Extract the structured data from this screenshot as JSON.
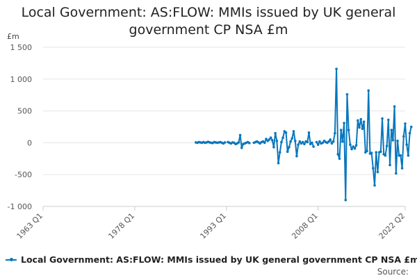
{
  "chart_data": {
    "type": "line",
    "title_lines": [
      "Local Government: AS:FLOW: MMIs issued by UK general",
      "government CP NSA £m"
    ],
    "ylabel": "£m",
    "ylim": [
      -1000,
      1500
    ],
    "y_ticks": [
      -1000,
      -500,
      0,
      500,
      1000,
      1500
    ],
    "y_tick_labels": [
      "-1 000",
      "-500",
      "0",
      "500",
      "1 000",
      "1 500"
    ],
    "x_tick_labels": [
      "1963 Q1",
      "1978 Q1",
      "1993 Q1",
      "2008 Q1",
      "2022 Q2"
    ],
    "x_tick_positions": [
      1963.0,
      1978.0,
      1993.0,
      2008.0,
      2022.25
    ],
    "xlim": [
      1963.0,
      2022.25
    ],
    "grid": "horizontal",
    "legend_position": "bottom",
    "series": [
      {
        "name": "Local Government: AS:FLOW: MMIs issued by UK general government CP NSA £m",
        "color": "#0877bd",
        "segments": [
          [
            [
              1988.0,
              5
            ],
            [
              1988.25,
              0
            ],
            [
              1988.5,
              10
            ],
            [
              1988.75,
              5
            ],
            [
              1989.0,
              0
            ],
            [
              1989.25,
              10
            ],
            [
              1989.5,
              0
            ],
            [
              1989.75,
              5
            ],
            [
              1990.0,
              15
            ],
            [
              1990.25,
              5
            ],
            [
              1990.5,
              0
            ],
            [
              1990.75,
              -5
            ],
            [
              1991.0,
              10
            ],
            [
              1991.25,
              5
            ],
            [
              1991.5,
              0
            ],
            [
              1991.75,
              5
            ],
            [
              1992.0,
              10
            ],
            [
              1992.25,
              0
            ],
            [
              1992.5,
              -10
            ],
            [
              1992.75,
              5
            ]
          ],
          [
            [
              1993.25,
              10
            ],
            [
              1993.5,
              0
            ],
            [
              1993.75,
              -10
            ],
            [
              1994.0,
              5
            ],
            [
              1994.25,
              0
            ],
            [
              1994.5,
              -20
            ],
            [
              1994.75,
              -10
            ],
            [
              1995.0,
              5
            ],
            [
              1995.25,
              120
            ],
            [
              1995.5,
              -80
            ],
            [
              1995.75,
              -20
            ],
            [
              1996.0,
              -10
            ],
            [
              1996.25,
              0
            ],
            [
              1996.5,
              10
            ],
            [
              1996.75,
              -5
            ]
          ],
          [
            [
              1997.5,
              0
            ],
            [
              1997.75,
              10
            ],
            [
              1998.0,
              20
            ],
            [
              1998.25,
              5
            ],
            [
              1998.5,
              -10
            ],
            [
              1998.75,
              10
            ],
            [
              1999.0,
              20
            ],
            [
              1999.25,
              0
            ],
            [
              1999.5,
              60
            ],
            [
              1999.75,
              30
            ],
            [
              2000.0,
              50
            ],
            [
              2000.25,
              80
            ],
            [
              2000.5,
              40
            ],
            [
              2000.75,
              -70
            ],
            [
              2001.0,
              150
            ],
            [
              2001.25,
              30
            ],
            [
              2001.5,
              -320
            ],
            [
              2001.75,
              -150
            ],
            [
              2002.0,
              10
            ],
            [
              2002.25,
              80
            ],
            [
              2002.5,
              180
            ],
            [
              2002.75,
              160
            ],
            [
              2003.0,
              -140
            ],
            [
              2003.25,
              -70
            ],
            [
              2003.5,
              20
            ],
            [
              2003.75,
              70
            ],
            [
              2004.0,
              180
            ],
            [
              2004.25,
              30
            ],
            [
              2004.5,
              -210
            ],
            [
              2004.75,
              -30
            ],
            [
              2005.0,
              20
            ],
            [
              2005.25,
              -10
            ],
            [
              2005.5,
              10
            ],
            [
              2005.75,
              -20
            ],
            [
              2006.0,
              20
            ],
            [
              2006.25,
              10
            ],
            [
              2006.5,
              160
            ],
            [
              2006.75,
              -20
            ],
            [
              2007.0,
              0
            ],
            [
              2007.25,
              -60
            ]
          ],
          [
            [
              2007.75,
              10
            ],
            [
              2008.0,
              -30
            ],
            [
              2008.25,
              20
            ],
            [
              2008.5,
              -10
            ],
            [
              2008.75,
              0
            ],
            [
              2009.0,
              30
            ],
            [
              2009.25,
              10
            ],
            [
              2009.5,
              0
            ],
            [
              2009.75,
              20
            ],
            [
              2010.0,
              50
            ],
            [
              2010.25,
              -10
            ],
            [
              2010.5,
              20
            ],
            [
              2010.75,
              150
            ],
            [
              2011.0,
              1160
            ],
            [
              2011.25,
              -180
            ],
            [
              2011.5,
              -250
            ],
            [
              2011.75,
              200
            ],
            [
              2012.0,
              20
            ],
            [
              2012.25,
              310
            ],
            [
              2012.5,
              -900
            ],
            [
              2012.75,
              760
            ],
            [
              2013.0,
              200
            ],
            [
              2013.25,
              -30
            ],
            [
              2013.5,
              -100
            ],
            [
              2013.75,
              -60
            ],
            [
              2014.0,
              -90
            ],
            [
              2014.25,
              -40
            ],
            [
              2014.5,
              350
            ],
            [
              2014.75,
              240
            ],
            [
              2015.0,
              370
            ],
            [
              2015.25,
              220
            ],
            [
              2015.5,
              330
            ],
            [
              2015.75,
              -150
            ],
            [
              2016.0,
              -130
            ],
            [
              2016.25,
              820
            ],
            [
              2016.5,
              -170
            ],
            [
              2016.75,
              -160
            ],
            [
              2017.0,
              -400
            ],
            [
              2017.25,
              -670
            ],
            [
              2017.5,
              -150
            ],
            [
              2017.75,
              -460
            ],
            [
              2018.0,
              -150
            ],
            [
              2018.25,
              -140
            ],
            [
              2018.5,
              380
            ],
            [
              2018.75,
              -180
            ],
            [
              2019.0,
              -200
            ],
            [
              2019.25,
              -50
            ],
            [
              2019.5,
              360
            ],
            [
              2019.75,
              -350
            ],
            [
              2020.0,
              200
            ],
            [
              2020.25,
              40
            ],
            [
              2020.5,
              570
            ],
            [
              2020.75,
              -480
            ],
            [
              2021.0,
              30
            ],
            [
              2021.25,
              -200
            ],
            [
              2021.5,
              -200
            ],
            [
              2021.75,
              -400
            ],
            [
              2022.0,
              100
            ],
            [
              2022.25,
              300
            ],
            [
              2022.5,
              -30
            ],
            [
              2022.75,
              -200
            ],
            [
              2023.0,
              150
            ],
            [
              2023.25,
              250
            ]
          ]
        ]
      }
    ]
  },
  "legend": {
    "label": "Local Government: AS:FLOW: MMIs issued by UK general government CP NSA £m"
  },
  "source": {
    "label": "Source:"
  }
}
